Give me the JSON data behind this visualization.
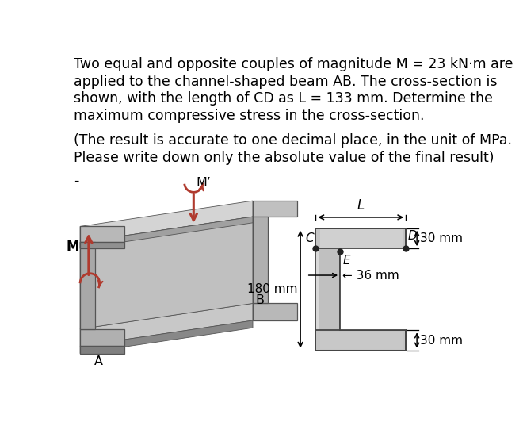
{
  "title_line1": "Two equal and opposite couples of magnitude M = 23 kN·m are",
  "title_line2": "applied to the channel-shaped beam AB. The cross-section is",
  "title_line3": "shown, with the length of CD as L = 133 mm. Determine the",
  "title_line4": "maximum compressive stress in the cross-section.",
  "subtitle_line1": "(The result is accurate to one decimal place, in the unit of MPa.",
  "subtitle_line2": "Please write down only the absolute value of the final result)",
  "small_dash": "-",
  "label_M": "M",
  "label_Mprime": "M’",
  "label_A": "A",
  "label_B": "B",
  "label_C": "C",
  "label_D": "D",
  "label_E": "E",
  "label_L": "L",
  "label_180mm": "180 mm",
  "label_36mm": "36 mm",
  "label_30mm_top": "30 mm",
  "label_30mm_bot": "30 mm",
  "bg_color": "#ffffff",
  "text_color": "#000000",
  "arrow_color": "#b03a2e",
  "cs_fill": "#c0c0c0",
  "cs_edge": "#444444"
}
